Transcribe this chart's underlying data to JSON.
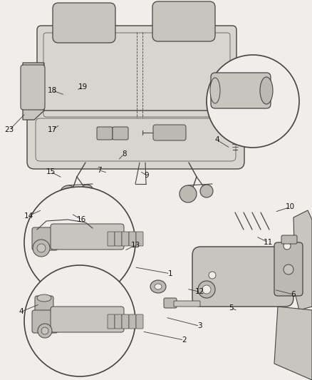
{
  "bg_color": "#f0eeeb",
  "line_color": "#444444",
  "fig_width": 4.38,
  "fig_height": 5.33,
  "dpi": 100,
  "seat_color": "#d8d5ce",
  "seat_edge": "#555555",
  "detail_color": "#c8c5be",
  "circle_face": "#f0eeeb",
  "part_color": "#bbb9b2",
  "label_positions": {
    "1": [
      0.545,
      0.72,
      0.43,
      0.703
    ],
    "2": [
      0.59,
      0.895,
      0.455,
      0.872
    ],
    "3": [
      0.64,
      0.858,
      0.53,
      0.835
    ],
    "4a": [
      0.068,
      0.82,
      0.128,
      0.8
    ],
    "5": [
      0.74,
      0.81,
      0.762,
      0.818
    ],
    "6": [
      0.94,
      0.775,
      0.878,
      0.762
    ],
    "7": [
      0.318,
      0.448,
      0.345,
      0.455
    ],
    "8": [
      0.398,
      0.405,
      0.378,
      0.422
    ],
    "9": [
      0.47,
      0.462,
      0.448,
      0.45
    ],
    "10": [
      0.93,
      0.545,
      0.88,
      0.558
    ],
    "11": [
      0.86,
      0.638,
      0.82,
      0.622
    ],
    "12": [
      0.64,
      0.768,
      0.598,
      0.76
    ],
    "13": [
      0.435,
      0.645,
      0.398,
      0.66
    ],
    "14": [
      0.092,
      0.568,
      0.135,
      0.552
    ],
    "15": [
      0.162,
      0.452,
      0.2,
      0.468
    ],
    "16": [
      0.262,
      0.578,
      0.228,
      0.562
    ],
    "17": [
      0.168,
      0.342,
      0.192,
      0.328
    ],
    "18": [
      0.168,
      0.238,
      0.208,
      0.25
    ],
    "19": [
      0.265,
      0.228,
      0.245,
      0.238
    ],
    "23": [
      0.03,
      0.342,
      0.082,
      0.298
    ],
    "4b": [
      0.695,
      0.368,
      0.738,
      0.39
    ]
  }
}
